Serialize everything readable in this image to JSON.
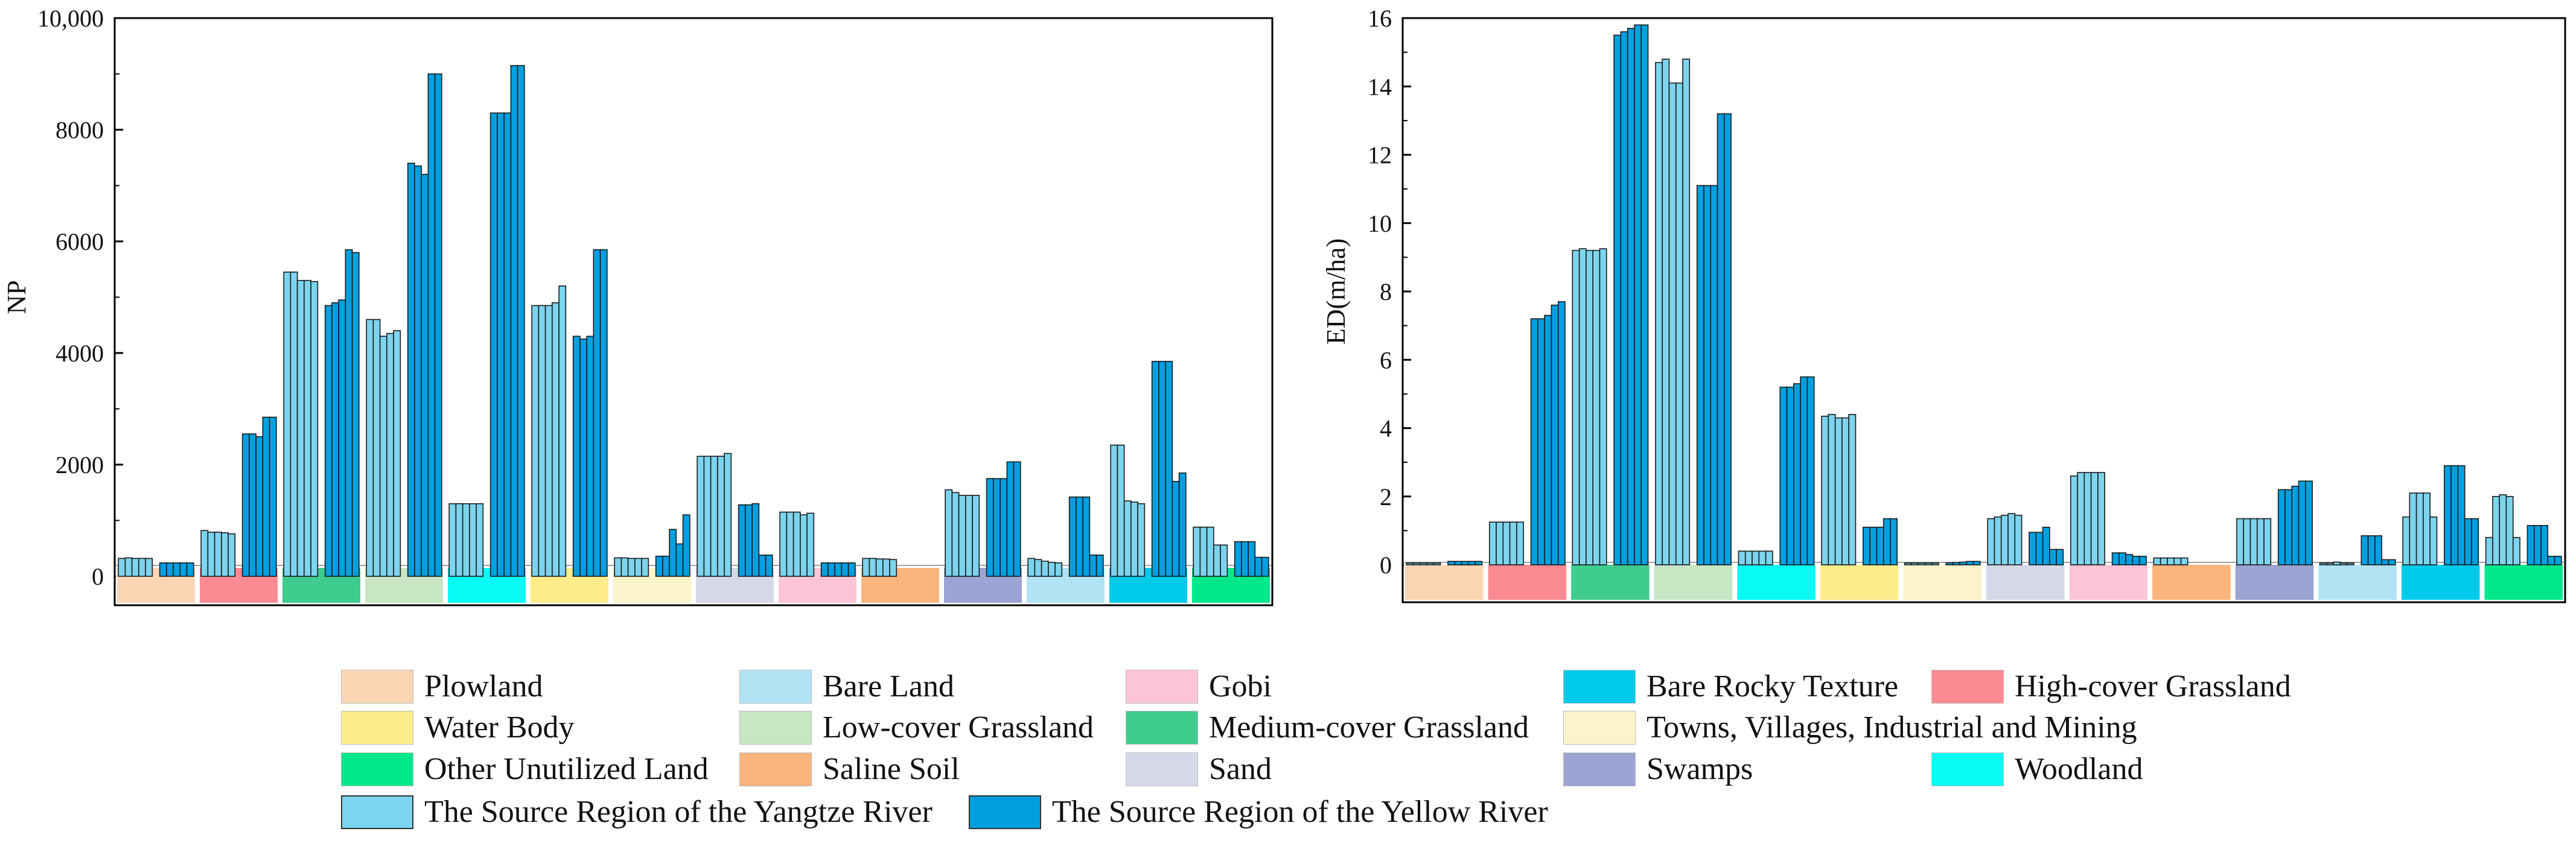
{
  "legend": {
    "categories": [
      {
        "name": "Plowland",
        "color": "#FCD5B5"
      },
      {
        "name": "Bare Land",
        "color": "#B0E4F4"
      },
      {
        "name": "Gobi",
        "color": "#FBC4D8"
      },
      {
        "name": "Bare Rocky Texture",
        "color": "#00CAEA"
      },
      {
        "name": "High-cover Grassland",
        "color": "#FB8A93"
      },
      {
        "name": "Water Body",
        "color": "#FFEC8A"
      },
      {
        "name": "Low-cover Grassland",
        "color": "#C8E6C4"
      },
      {
        "name": "Medium-cover Grassland",
        "color": "#3FCC8E"
      },
      {
        "name": "Towns, Villages, Industrial and Mining",
        "color": "#FBF3C9"
      },
      {
        "name": "Other Unutilized Land",
        "color": "#00E88A"
      },
      {
        "name": "Saline Soil",
        "color": "#FBB47C"
      },
      {
        "name": "Sand",
        "color": "#D6D8EA"
      },
      {
        "name": "Swamps",
        "color": "#9BA4D2"
      },
      {
        "name": "Woodland",
        "color": "#08FAF4"
      }
    ],
    "regions": [
      {
        "name": "The Source Region of the Yangtze River",
        "color": "#7CD4EE"
      },
      {
        "name": "The Source Region of the Yellow River",
        "color": "#00A0E0"
      }
    ]
  },
  "chart_data": [
    {
      "type": "bar",
      "ylabel": "NP",
      "ylim": [
        0,
        10000
      ],
      "yticks": [
        "0",
        "2000",
        "4000",
        "6000",
        "8000",
        "10,000"
      ],
      "categories": [
        "Plowland",
        "High-cover Grassland",
        "Medium-cover Grassland",
        "Low-cover Grassland",
        "Woodland",
        "Water Body",
        "Towns, Villages, Industrial and Mining",
        "Sand",
        "Gobi",
        "Saline Soil",
        "Swamps",
        "Bare Land",
        "Bare Rocky Texture",
        "Other Unutilized Land"
      ],
      "category_colors": [
        "#FCD5B5",
        "#FB8A93",
        "#3FCC8E",
        "#C8E6C4",
        "#08FAF4",
        "#FFEC8A",
        "#FBF3C9",
        "#D6D8EA",
        "#FBC4D8",
        "#FBB47C",
        "#9BA4D2",
        "#B0E4F4",
        "#00CAEA",
        "#00E88A"
      ],
      "series": [
        {
          "name": "The Source Region of the Yangtze River",
          "values": [
            [
              320,
              330,
              320,
              320,
              320
            ],
            [
              820,
              790,
              790,
              780,
              760
            ],
            [
              5450,
              5450,
              5300,
              5300,
              5280
            ],
            [
              4600,
              4600,
              4300,
              4350,
              4400
            ],
            [
              1300,
              1300,
              1300,
              1300,
              1300
            ],
            [
              4850,
              4850,
              4850,
              4900,
              5200
            ],
            [
              330,
              330,
              320,
              320,
              320
            ],
            [
              2150,
              2150,
              2150,
              2150,
              2200
            ],
            [
              1150,
              1150,
              1150,
              1100,
              1130
            ],
            [
              320,
              320,
              310,
              310,
              300
            ],
            [
              1550,
              1500,
              1450,
              1450,
              1450
            ],
            [
              320,
              300,
              270,
              250,
              240
            ],
            [
              2350,
              2350,
              1350,
              1330,
              1300
            ],
            [
              880,
              880,
              880,
              560,
              560
            ]
          ]
        },
        {
          "name": "The Source Region of the Yellow River",
          "values": [
            [
              240,
              240,
              240,
              240,
              240
            ],
            [
              2550,
              2550,
              2500,
              2850,
              2850
            ],
            [
              4850,
              4900,
              4950,
              5850,
              5800
            ],
            [
              7400,
              7350,
              7200,
              9000,
              9000
            ],
            [
              8300,
              8300,
              8300,
              9150,
              9150
            ],
            [
              4300,
              4250,
              4300,
              5850,
              5850
            ],
            [
              360,
              360,
              840,
              580,
              1100
            ],
            [
              1280,
              1280,
              1300,
              380,
              380
            ],
            [
              240,
              240,
              240,
              240,
              240
            ],
            [],
            [
              1750,
              1750,
              1750,
              2050,
              2050
            ],
            [
              1420,
              1420,
              1420,
              380,
              380
            ],
            [
              3850,
              3850,
              3850,
              1700,
              1850
            ],
            [
              620,
              620,
              620,
              340,
              340
            ]
          ]
        }
      ]
    },
    {
      "type": "bar",
      "ylabel": "ED(m/ha)",
      "ylim": [
        0,
        16
      ],
      "yticks": [
        "0",
        "2",
        "4",
        "6",
        "8",
        "10",
        "12",
        "14",
        "16"
      ],
      "categories": [
        "Plowland",
        "High-cover Grassland",
        "Medium-cover Grassland",
        "Low-cover Grassland",
        "Woodland",
        "Water Body",
        "Towns, Villages, Industrial and Mining",
        "Sand",
        "Gobi",
        "Saline Soil",
        "Swamps",
        "Bare Land",
        "Bare Rocky Texture",
        "Other Unutilized Land"
      ],
      "category_colors": [
        "#FCD5B5",
        "#FB8A93",
        "#3FCC8E",
        "#C8E6C4",
        "#08FAF4",
        "#FFEC8A",
        "#FBF3C9",
        "#D6D8EA",
        "#FBC4D8",
        "#FBB47C",
        "#9BA4D2",
        "#B0E4F4",
        "#00CAEA",
        "#00E88A"
      ],
      "series": [
        {
          "name": "The Source Region of the Yangtze River",
          "values": [
            [
              0.05,
              0.05,
              0.05,
              0.05,
              0.05
            ],
            [
              1.25,
              1.25,
              1.25,
              1.25,
              1.25
            ],
            [
              9.2,
              9.25,
              9.2,
              9.2,
              9.25
            ],
            [
              14.7,
              14.8,
              14.1,
              14.1,
              14.8
            ],
            [
              0.4,
              0.4,
              0.4,
              0.4,
              0.4
            ],
            [
              4.35,
              4.4,
              4.3,
              4.3,
              4.4
            ],
            [
              0.05,
              0.05,
              0.05,
              0.05,
              0.05
            ],
            [
              1.35,
              1.4,
              1.45,
              1.5,
              1.45
            ],
            [
              2.6,
              2.7,
              2.7,
              2.7,
              2.7
            ],
            [
              0.2,
              0.2,
              0.2,
              0.2,
              0.2
            ],
            [
              1.35,
              1.35,
              1.35,
              1.35,
              1.35
            ],
            [
              0.05,
              0.05,
              0.08,
              0.05,
              0.05
            ],
            [
              1.4,
              2.1,
              2.1,
              2.1,
              1.4
            ],
            [
              0.8,
              2.0,
              2.05,
              2.0,
              0.8
            ]
          ]
        },
        {
          "name": "The Source Region of the Yellow River",
          "values": [
            [
              0.1,
              0.1,
              0.1,
              0.1,
              0.1
            ],
            [
              7.2,
              7.2,
              7.3,
              7.6,
              7.7
            ],
            [
              15.5,
              15.6,
              15.7,
              15.8,
              15.8
            ],
            [
              11.1,
              11.1,
              11.1,
              13.2,
              13.2
            ],
            [
              5.2,
              5.2,
              5.3,
              5.5,
              5.5
            ],
            [
              1.1,
              1.1,
              1.1,
              1.35,
              1.35
            ],
            [
              0.06,
              0.07,
              0.08,
              0.1,
              0.1
            ],
            [
              0.95,
              0.95,
              1.1,
              0.45,
              0.45
            ],
            [
              0.35,
              0.35,
              0.3,
              0.25,
              0.25
            ],
            [],
            [
              2.2,
              2.2,
              2.3,
              2.45,
              2.45
            ],
            [
              0.85,
              0.85,
              0.85,
              0.15,
              0.15
            ],
            [
              2.9,
              2.9,
              2.9,
              1.35,
              1.35
            ],
            [
              1.15,
              1.15,
              1.15,
              0.25,
              0.25
            ]
          ]
        }
      ]
    }
  ]
}
